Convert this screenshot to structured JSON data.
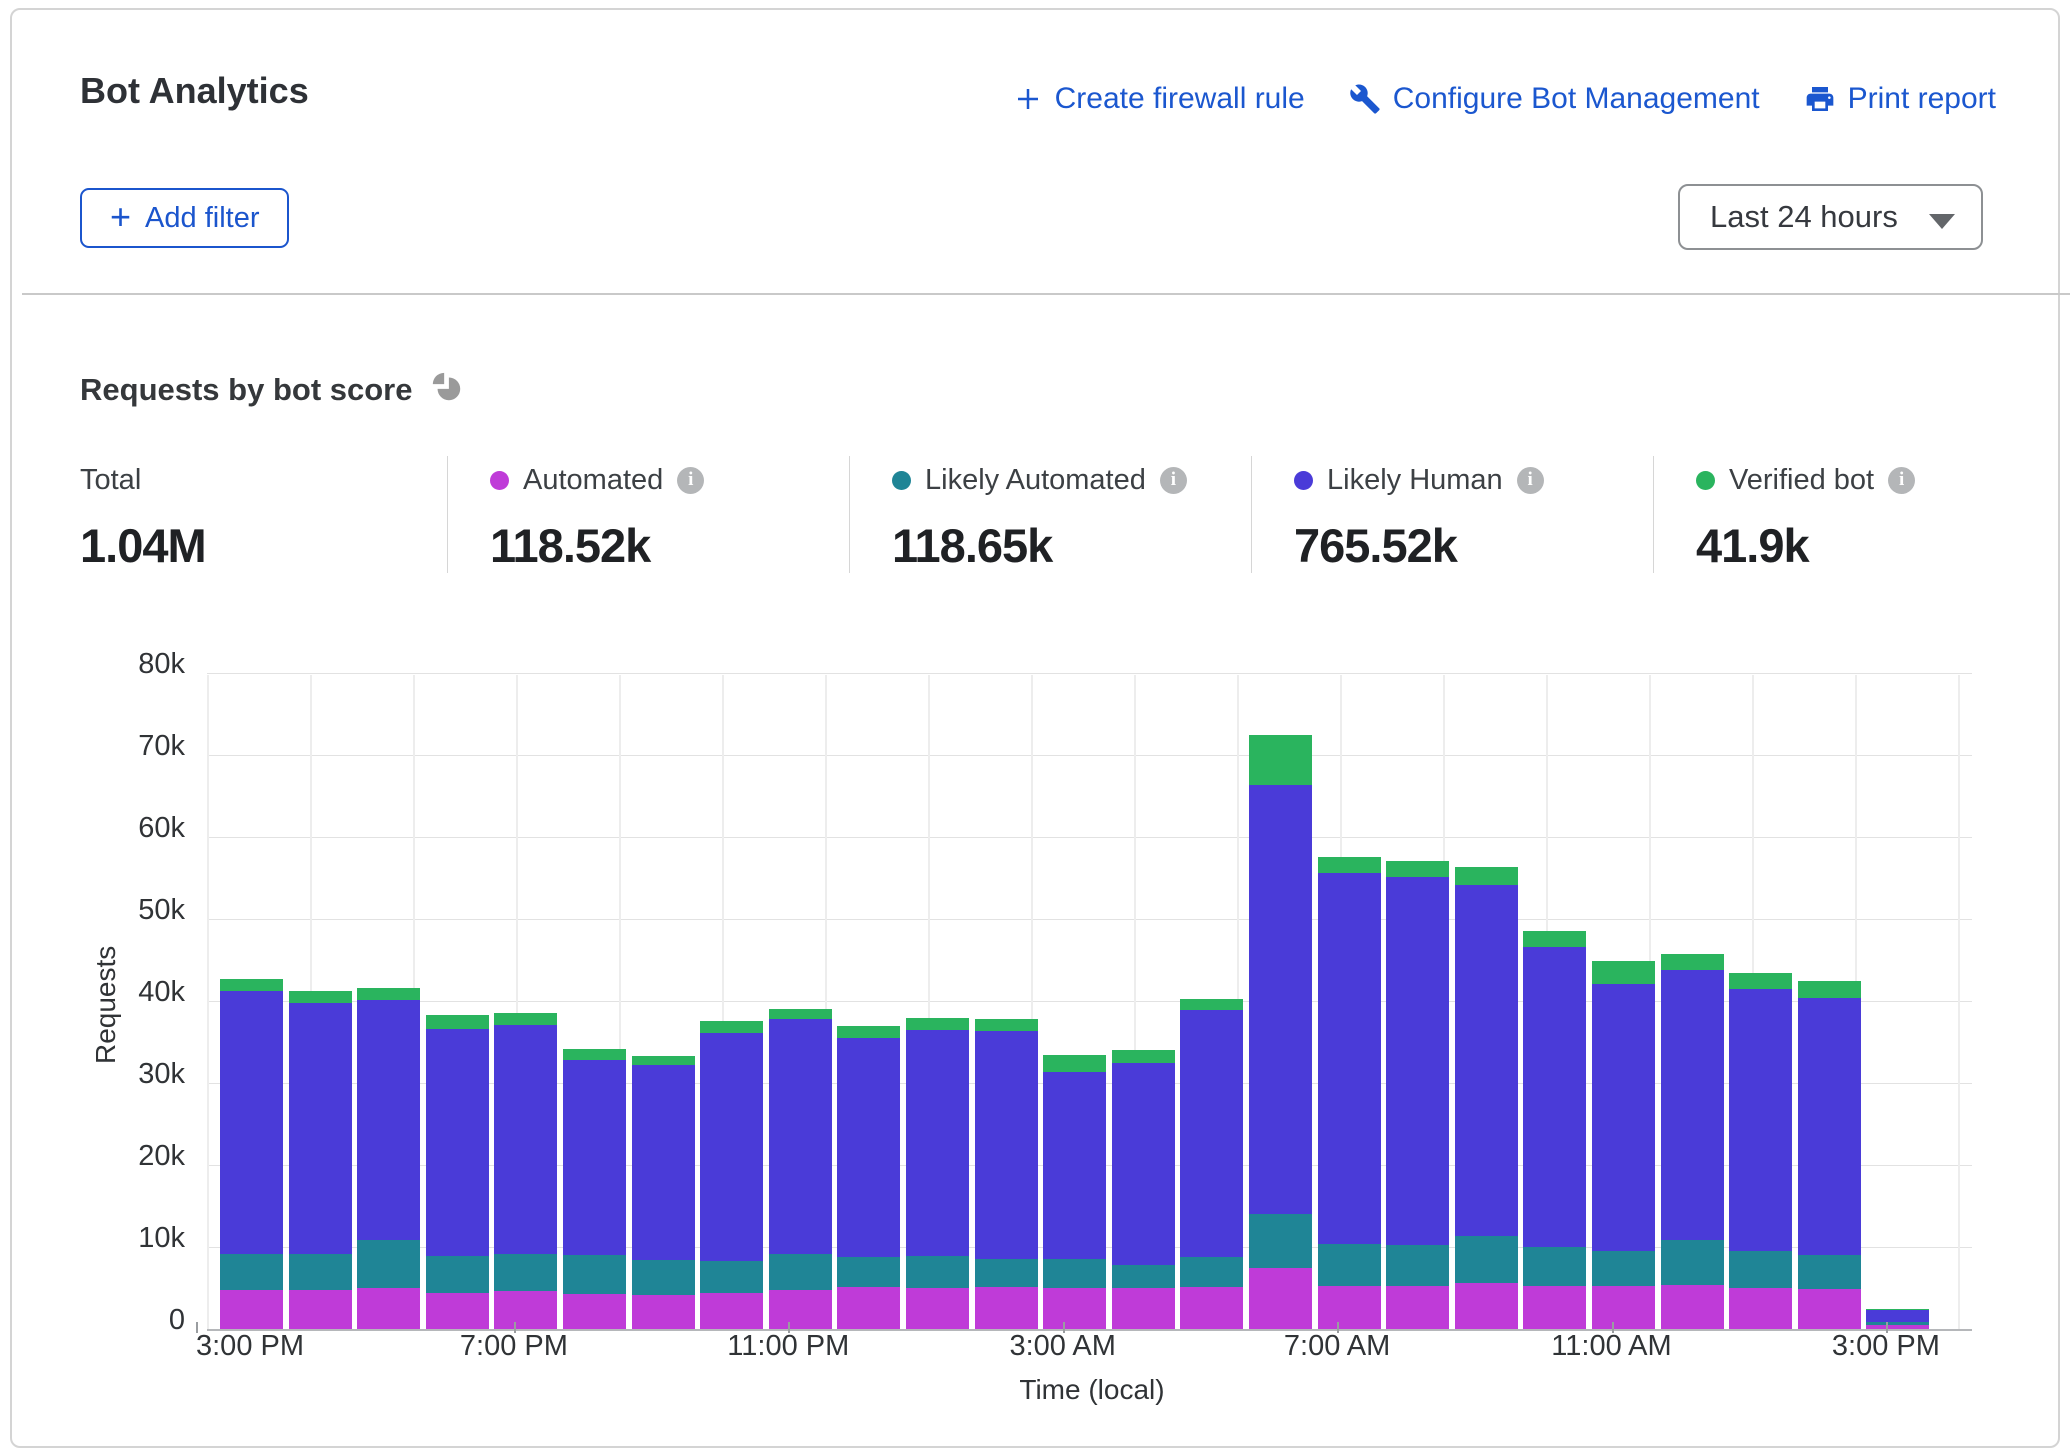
{
  "header": {
    "title": "Bot Analytics",
    "actions": [
      {
        "label": "Create firewall rule",
        "icon": "plus-icon"
      },
      {
        "label": "Configure Bot Management",
        "icon": "wrench-icon"
      },
      {
        "label": "Print report",
        "icon": "printer-icon"
      }
    ],
    "add_filter_label": "Add filter",
    "time_range_value": "Last 24 hours"
  },
  "section": {
    "title": "Requests by bot score"
  },
  "stats": {
    "total": {
      "label": "Total",
      "value": "1.04M"
    },
    "legend": [
      {
        "label": "Automated",
        "value": "118.52k",
        "color": "#bf3bd8"
      },
      {
        "label": "Likely Automated",
        "value": "118.65k",
        "color": "#1f8596"
      },
      {
        "label": "Likely Human",
        "value": "765.52k",
        "color": "#4a3bd8"
      },
      {
        "label": "Verified bot",
        "value": "41.9k",
        "color": "#2ab45e"
      }
    ]
  },
  "chart_data": {
    "type": "bar",
    "stacked": true,
    "title": "Requests by bot score",
    "xlabel": "Time (local)",
    "ylabel": "Requests",
    "unit": "thousands of requests",
    "ylim": [
      0,
      80
    ],
    "y_ticks": [
      "0",
      "10k",
      "20k",
      "30k",
      "40k",
      "50k",
      "60k",
      "70k",
      "80k"
    ],
    "x": [
      "3:00 PM",
      "4:00 PM",
      "5:00 PM",
      "6:00 PM",
      "7:00 PM",
      "8:00 PM",
      "9:00 PM",
      "10:00 PM",
      "11:00 PM",
      "12:00 AM",
      "1:00 AM",
      "2:00 AM",
      "3:00 AM",
      "4:00 AM",
      "5:00 AM",
      "6:00 AM",
      "7:00 AM",
      "8:00 AM",
      "9:00 AM",
      "10:00 AM",
      "11:00 AM",
      "12:00 PM",
      "1:00 PM",
      "2:00 PM",
      "3:00 PM"
    ],
    "x_tick_indices": [
      0,
      4,
      8,
      12,
      16,
      20,
      24
    ],
    "x_tick_labels": [
      "3:00 PM",
      "7:00 PM",
      "11:00 PM",
      "3:00 AM",
      "7:00 AM",
      "11:00 AM",
      "3:00 PM"
    ],
    "series": [
      {
        "name": "Automated",
        "color": "#bf3bd8",
        "values": [
          4.7,
          4.7,
          5.0,
          4.4,
          4.6,
          4.3,
          4.2,
          4.4,
          4.8,
          5.1,
          5.0,
          5.1,
          5.0,
          5.0,
          5.1,
          7.5,
          5.2,
          5.3,
          5.6,
          5.3,
          5.2,
          5.4,
          5.0,
          4.9,
          0.5
        ]
      },
      {
        "name": "Likely Automated",
        "color": "#1f8596",
        "values": [
          4.5,
          4.4,
          5.8,
          4.5,
          4.6,
          4.7,
          4.2,
          3.9,
          4.4,
          3.7,
          3.9,
          3.5,
          3.5,
          2.8,
          3.7,
          6.5,
          5.2,
          4.9,
          5.7,
          4.7,
          4.3,
          5.4,
          4.5,
          4.1,
          0.4
        ]
      },
      {
        "name": "Likely Human",
        "color": "#4a3bd8",
        "values": [
          32.0,
          30.6,
          29.3,
          27.7,
          27.9,
          23.8,
          23.8,
          27.8,
          28.6,
          26.7,
          27.6,
          27.7,
          22.9,
          24.7,
          30.1,
          52.4,
          45.2,
          44.9,
          42.8,
          36.6,
          32.6,
          33.0,
          32.0,
          31.4,
          1.4
        ]
      },
      {
        "name": "Verified bot",
        "color": "#2ab45e",
        "values": [
          1.5,
          1.5,
          1.5,
          1.7,
          1.4,
          1.4,
          1.1,
          1.5,
          1.2,
          1.4,
          1.4,
          1.5,
          2.0,
          1.5,
          1.4,
          6.0,
          2.0,
          2.0,
          2.3,
          2.0,
          2.8,
          1.9,
          1.9,
          2.0,
          0.2
        ]
      }
    ]
  }
}
